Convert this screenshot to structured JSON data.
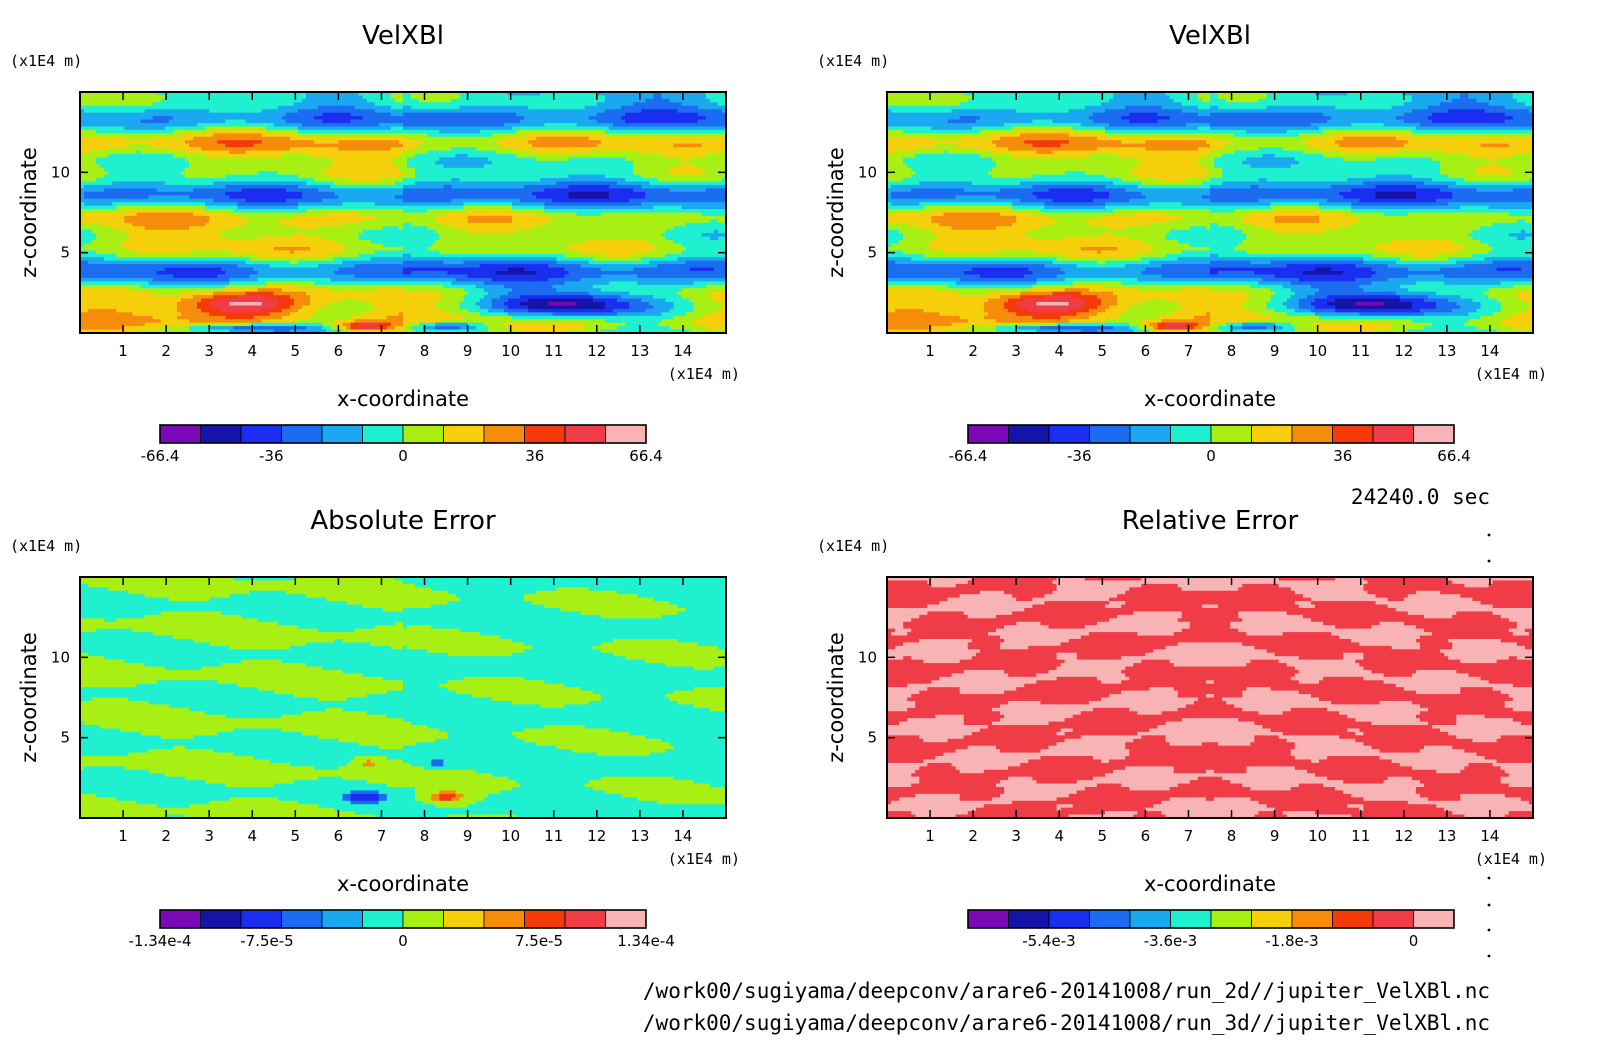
{
  "time_label": "24240.0 sec",
  "footer_paths": [
    "/work00/sugiyama/deepconv/arare6-20141008/run_2d//jupiter_VelXBl.nc",
    "/work00/sugiyama/deepconv/arare6-20141008/run_3d//jupiter_VelXBl.nc"
  ],
  "palette": [
    "#7a0ab5",
    "#1414a8",
    "#1a2ef0",
    "#1c6cf2",
    "#1aa8f0",
    "#1ef0d0",
    "#a8f014",
    "#f5d00a",
    "#f58c0a",
    "#f53a0a",
    "#f03c46",
    "#f8b4b4"
  ],
  "chart_data": [
    {
      "id": "vel-2d",
      "type": "heatmap",
      "title": "VelXBl",
      "xlabel": "x-coordinate",
      "ylabel": "z-coordinate",
      "xunit": "(×1E4 m)",
      "yunit": "(×1E4 m)",
      "xlim": [
        0,
        15
      ],
      "ylim": [
        0,
        15
      ],
      "xticks": [
        1,
        2,
        3,
        4,
        5,
        6,
        7,
        8,
        9,
        10,
        11,
        12,
        13,
        14
      ],
      "yticks": [
        5,
        10
      ],
      "colorbar": {
        "min": -66.4,
        "max": 66.4,
        "labels": [
          "-66.4",
          "-36",
          "0",
          "36",
          "66.4"
        ],
        "label_values": [
          -66.4,
          -36,
          0,
          36,
          66.4
        ]
      },
      "pattern": "velocity"
    },
    {
      "id": "vel-3d",
      "type": "heatmap",
      "title": "VelXBl",
      "xlabel": "x-coordinate",
      "ylabel": "z-coordinate",
      "xunit": "(×1E4 m)",
      "yunit": "(×1E4 m)",
      "xlim": [
        0,
        15
      ],
      "ylim": [
        0,
        15
      ],
      "xticks": [
        1,
        2,
        3,
        4,
        5,
        6,
        7,
        8,
        9,
        10,
        11,
        12,
        13,
        14
      ],
      "yticks": [
        5,
        10
      ],
      "colorbar": {
        "min": -66.4,
        "max": 66.4,
        "labels": [
          "-66.4",
          "-36",
          "0",
          "36",
          "66.4"
        ],
        "label_values": [
          -66.4,
          -36,
          0,
          36,
          66.4
        ]
      },
      "pattern": "velocity"
    },
    {
      "id": "abs-error",
      "type": "heatmap",
      "title": "Absolute Error",
      "xlabel": "x-coordinate",
      "ylabel": "z-coordinate",
      "xunit": "(×1E4 m)",
      "yunit": "(×1E4 m)",
      "xlim": [
        0,
        15
      ],
      "ylim": [
        0,
        15
      ],
      "xticks": [
        1,
        2,
        3,
        4,
        5,
        6,
        7,
        8,
        9,
        10,
        11,
        12,
        13,
        14
      ],
      "yticks": [
        5,
        10
      ],
      "colorbar": {
        "min": -0.000134,
        "max": 0.000134,
        "labels": [
          "-1.34e-4",
          "-7.5e-5",
          "0",
          "7.5e-5",
          "1.34e-4"
        ],
        "label_values": [
          -0.000134,
          -7.5e-05,
          0,
          7.5e-05,
          0.000134
        ]
      },
      "pattern": "abserror"
    },
    {
      "id": "rel-error",
      "type": "heatmap",
      "title": "Relative Error",
      "xlabel": "x-coordinate",
      "ylabel": "z-coordinate",
      "xunit": "(×1E4 m)",
      "yunit": "(×1E4 m)",
      "xlim": [
        0,
        15
      ],
      "ylim": [
        0,
        15
      ],
      "xticks": [
        1,
        2,
        3,
        4,
        5,
        6,
        7,
        8,
        9,
        10,
        11,
        12,
        13,
        14
      ],
      "yticks": [
        5,
        10
      ],
      "colorbar": {
        "min": -0.0066,
        "max": 0.0006,
        "labels": [
          "-5.4e-3",
          "-3.6e-3",
          "-1.8e-3",
          "0"
        ],
        "label_values": [
          -0.0054,
          -0.0036,
          -0.0018,
          0
        ]
      },
      "pattern": "relerror"
    }
  ]
}
